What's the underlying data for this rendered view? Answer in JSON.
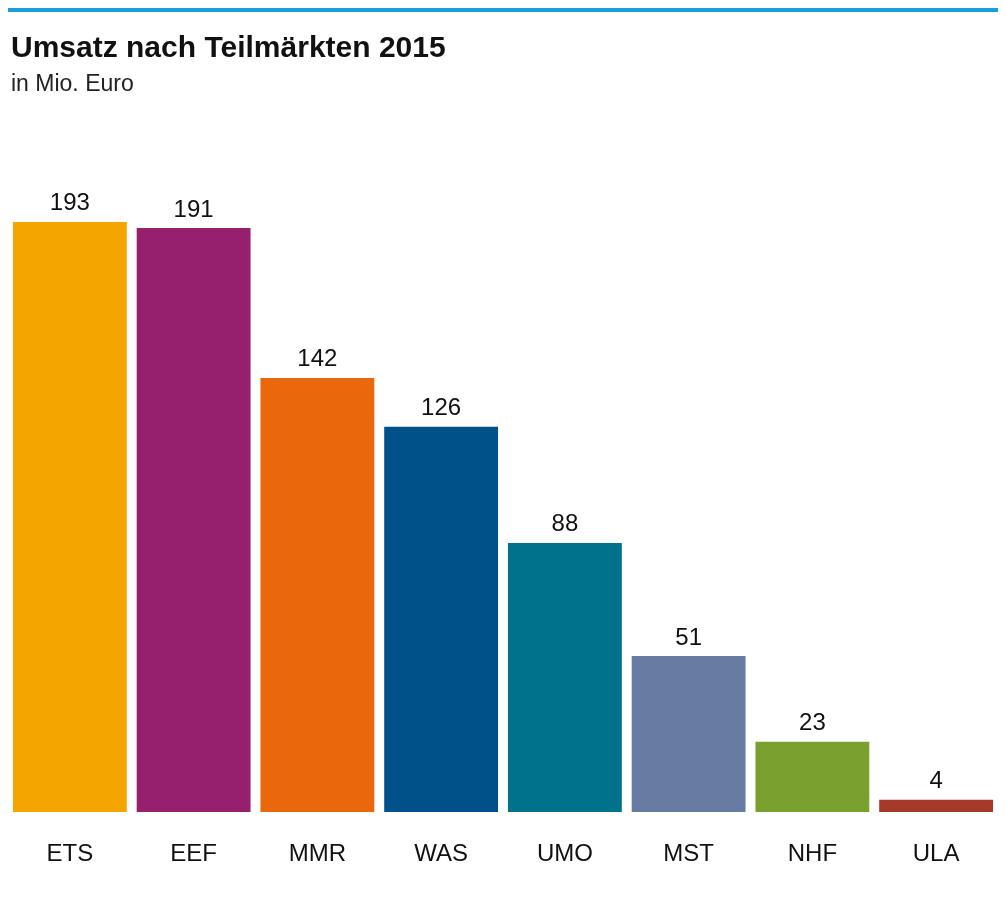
{
  "chart_data": {
    "type": "bar",
    "title": "Umsatz nach Teilmärkten 2015",
    "subtitle": "in Mio. Euro",
    "categories": [
      "ETS",
      "EEF",
      "MMR",
      "WAS",
      "UMO",
      "MST",
      "NHF",
      "ULA"
    ],
    "values": [
      193,
      191,
      142,
      126,
      88,
      51,
      23,
      4
    ],
    "colors": [
      "#f5a500",
      "#97206e",
      "#ea670c",
      "#005089",
      "#00728c",
      "#687ba2",
      "#7aa02f",
      "#a5392a"
    ],
    "data_labels": true
  }
}
